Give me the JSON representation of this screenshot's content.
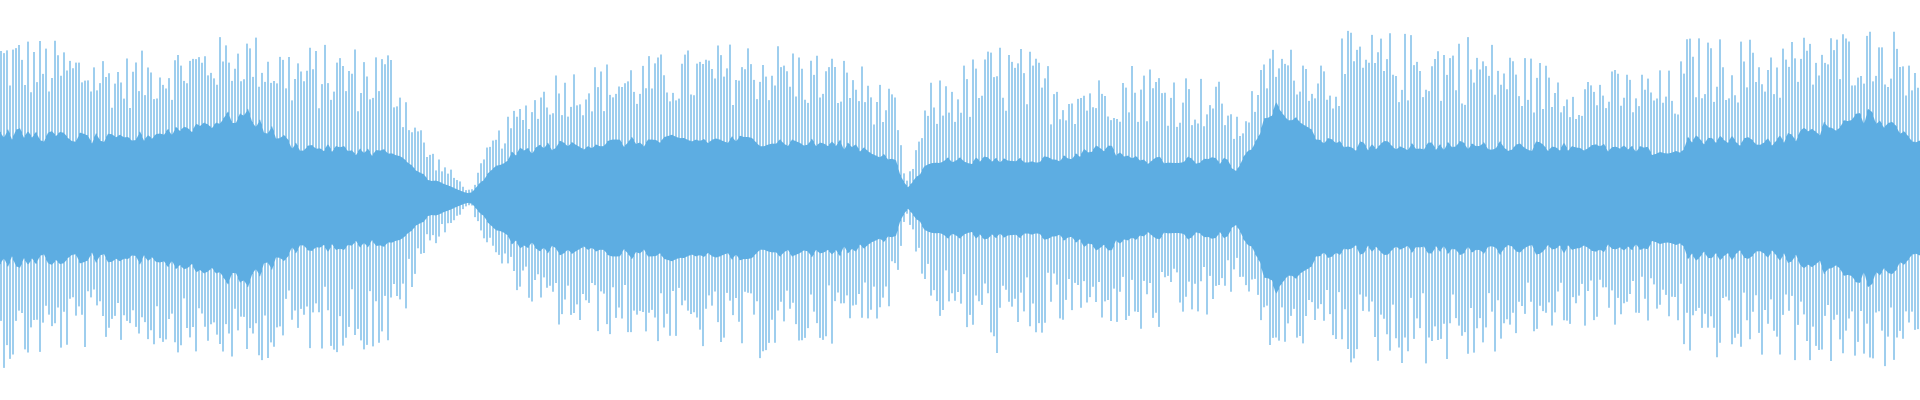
{
  "chart_data": {
    "type": "area",
    "kind": "audio-waveform",
    "color": "#5DADE2",
    "background": "#FFFFFF",
    "title": "",
    "xlabel": "",
    "ylabel": "",
    "ylim": [
      -1,
      1
    ],
    "envelope": {
      "position": [
        0,
        0.064,
        0.128,
        0.153,
        0.204,
        0.223,
        0.245,
        0.255,
        0.268,
        0.287,
        0.351,
        0.395,
        0.446,
        0.466,
        0.472,
        0.485,
        0.523,
        0.555,
        0.574,
        0.593,
        0.638,
        0.644,
        0.663,
        0.695,
        0.698,
        0.702,
        0.765,
        0.816,
        0.874,
        0.879,
        0.883,
        0.925,
        0.976,
        1
      ],
      "peak": [
        0.95,
        0.8,
        0.93,
        0.86,
        0.86,
        0.3,
        0.04,
        0.32,
        0.5,
        0.72,
        0.82,
        0.9,
        0.78,
        0.58,
        0.08,
        0.65,
        0.9,
        0.72,
        0.68,
        0.79,
        0.65,
        0.45,
        0.86,
        0.8,
        0.93,
        0.93,
        0.93,
        0.72,
        0.72,
        0.93,
        0.9,
        0.9,
        0.96,
        0.93
      ],
      "core": [
        0.36,
        0.32,
        0.46,
        0.29,
        0.25,
        0.11,
        0.02,
        0.14,
        0.25,
        0.29,
        0.32,
        0.32,
        0.29,
        0.21,
        0.05,
        0.21,
        0.21,
        0.22,
        0.29,
        0.21,
        0.21,
        0.14,
        0.5,
        0.29,
        0.29,
        0.29,
        0.29,
        0.29,
        0.25,
        0.32,
        0.32,
        0.32,
        0.46,
        0.32
      ]
    }
  }
}
